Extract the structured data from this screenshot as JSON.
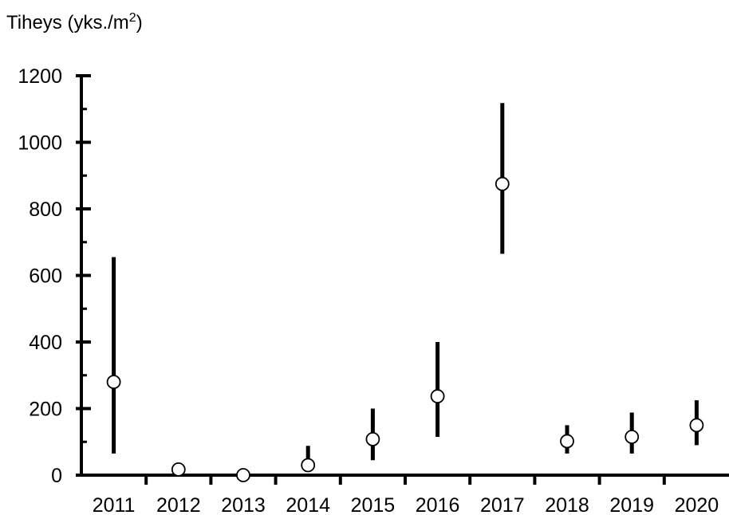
{
  "chart_data": {
    "type": "scatter",
    "title": "",
    "ylabel": "Tiheys (yks./m",
    "ylabel_superscript": "2",
    "ylabel_suffix": ")",
    "xlabel": "",
    "categories": [
      "2011",
      "2012",
      "2013",
      "2014",
      "2015",
      "2016",
      "2017",
      "2018",
      "2019",
      "2020"
    ],
    "series": [
      {
        "values": [
          280,
          17,
          0,
          30,
          108,
          237,
          875,
          102,
          115,
          150
        ],
        "err_low": [
          65,
          17,
          0,
          15,
          45,
          115,
          665,
          65,
          65,
          90
        ],
        "err_high": [
          655,
          17,
          0,
          88,
          200,
          400,
          1118,
          150,
          188,
          225
        ]
      }
    ],
    "ylim": [
      0,
      1200
    ],
    "yticks": [
      "0",
      "200",
      "400",
      "600",
      "800",
      "1000",
      "1200"
    ],
    "yminor_step": 100,
    "grid": false,
    "marker": "open-circle",
    "colors": {
      "axis": "#000000",
      "errorbar": "#000000",
      "marker_fill": "#ffffff"
    }
  }
}
